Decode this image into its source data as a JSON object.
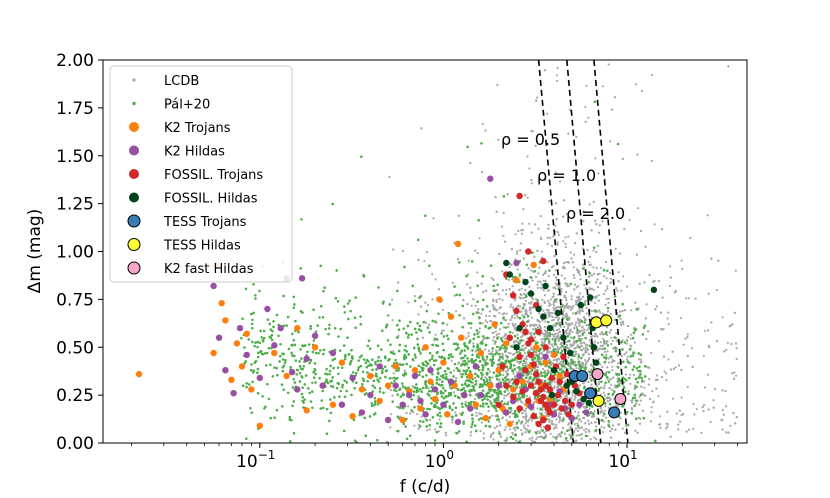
{
  "chart_data": {
    "type": "scatter",
    "x_scale": "log",
    "xlim": [
      0.014,
      45
    ],
    "ylim": [
      0.0,
      2.0
    ],
    "xlabel": "f (c/d)",
    "ylabel": "Δm (mag)",
    "x_ticks": [
      {
        "value": 0.1,
        "base": "10",
        "exp": "−1"
      },
      {
        "value": 1,
        "base": "10",
        "exp": "0"
      },
      {
        "value": 10,
        "base": "10",
        "exp": "1"
      }
    ],
    "y_ticks": [
      "0.00",
      "0.25",
      "0.50",
      "0.75",
      "1.00",
      "1.25",
      "1.50",
      "1.75",
      "2.00"
    ],
    "legend": [
      {
        "key": "lcdb",
        "label": "LCDB"
      },
      {
        "key": "pal",
        "label": "Pál+20"
      },
      {
        "key": "k2_trojans",
        "label": "K2 Trojans"
      },
      {
        "key": "k2_hildas",
        "label": "K2 Hildas"
      },
      {
        "key": "fossil_trojans",
        "label": "FOSSIL. Trojans"
      },
      {
        "key": "fossil_hildas",
        "label": "FOSSIL. Hildas"
      },
      {
        "key": "tess_trojans",
        "label": "TESS Trojans"
      },
      {
        "key": "tess_hildas",
        "label": "TESS Hildas"
      },
      {
        "key": "k2_fast_hildas",
        "label": "K2 fast Hildas"
      }
    ],
    "legend_position": "upper-left",
    "density_lines": [
      {
        "label": "ρ = 0.5",
        "rho": 0.5,
        "x_at_top": 3.3,
        "x_at_bottom": 5.1
      },
      {
        "label": "ρ = 1.0",
        "rho": 1.0,
        "x_at_top": 4.7,
        "x_at_bottom": 7.2
      },
      {
        "label": "ρ = 2.0",
        "rho": 2.0,
        "x_at_top": 6.6,
        "x_at_bottom": 10.1
      }
    ],
    "background_clouds": {
      "lcdb": {
        "color": "#a9a9a9",
        "count": 3600,
        "note": "dense gray cloud peaking near f≈3–6 c/d, Δm 0.1–1.4, sparse outliers to 2.0"
      },
      "pal": {
        "color": "#4daf4a",
        "count": 5200,
        "note": "dense green cloud spanning f 0.03–15 c/d, Δm 0.05–1.0"
      }
    },
    "series": [
      {
        "key": "k2_trojans",
        "name": "K2 Trojans",
        "color": "#ff7f0e",
        "edge": "none",
        "points": [
          [
            0.022,
            0.36
          ],
          [
            0.056,
            0.47
          ],
          [
            0.058,
            0.93
          ],
          [
            0.062,
            0.73
          ],
          [
            0.065,
            0.64
          ],
          [
            0.07,
            0.33
          ],
          [
            0.075,
            0.52
          ],
          [
            0.08,
            0.4
          ],
          [
            0.085,
            0.57
          ],
          [
            0.09,
            0.28
          ],
          [
            0.1,
            0.09
          ],
          [
            0.12,
            0.47
          ],
          [
            0.14,
            0.35
          ],
          [
            0.16,
            0.6
          ],
          [
            0.18,
            0.17
          ],
          [
            0.2,
            0.5
          ],
          [
            0.22,
            0.3
          ],
          [
            0.25,
            0.2
          ],
          [
            0.28,
            0.42
          ],
          [
            0.32,
            0.14
          ],
          [
            0.36,
            0.28
          ],
          [
            0.4,
            0.35
          ],
          [
            0.45,
            0.22
          ],
          [
            0.5,
            0.3
          ],
          [
            0.55,
            0.4
          ],
          [
            0.6,
            0.12
          ],
          [
            0.65,
            0.27
          ],
          [
            0.7,
            0.38
          ],
          [
            0.75,
            0.18
          ],
          [
            0.8,
            0.5
          ],
          [
            0.85,
            0.32
          ],
          [
            0.9,
            0.23
          ],
          [
            0.95,
            0.75
          ],
          [
            1.0,
            0.42
          ],
          [
            1.05,
            0.15
          ],
          [
            1.1,
            0.66
          ],
          [
            1.15,
            0.3
          ],
          [
            1.2,
            1.04
          ],
          [
            1.25,
            0.55
          ],
          [
            1.3,
            0.25
          ],
          [
            1.4,
            0.35
          ],
          [
            1.5,
            0.2
          ],
          [
            1.6,
            0.47
          ],
          [
            1.7,
            0.13
          ],
          [
            1.8,
            0.3
          ],
          [
            1.9,
            0.62
          ],
          [
            2.0,
            0.38
          ],
          [
            2.1,
            0.18
          ],
          [
            2.2,
            0.52
          ],
          [
            2.3,
            0.1
          ],
          [
            2.4,
            0.28
          ],
          [
            2.5,
            0.85
          ],
          [
            2.6,
            0.45
          ],
          [
            2.7,
            0.32
          ],
          [
            2.8,
            0.58
          ],
          [
            2.9,
            0.2
          ],
          [
            3.0,
            0.4
          ],
          [
            3.2,
            0.5
          ],
          [
            3.3,
            0.22
          ],
          [
            3.4,
            0.3
          ],
          [
            3.5,
            0.13
          ],
          [
            3.6,
            0.42
          ],
          [
            3.8,
            0.22
          ],
          [
            4.0,
            0.46
          ],
          [
            4.3,
            0.35
          ],
          [
            4.5,
            0.28
          ],
          [
            3.1,
            0.93
          ]
        ]
      },
      {
        "key": "k2_hildas",
        "name": "K2 Hildas",
        "color": "#984ea3",
        "edge": "none",
        "points": [
          [
            0.056,
            0.82
          ],
          [
            0.06,
            0.55
          ],
          [
            0.065,
            0.38
          ],
          [
            0.072,
            0.26
          ],
          [
            0.078,
            0.6
          ],
          [
            0.085,
            0.46
          ],
          [
            0.1,
            0.34
          ],
          [
            0.11,
            0.7
          ],
          [
            0.12,
            0.51
          ],
          [
            0.13,
            0.6
          ],
          [
            0.14,
            0.86
          ],
          [
            0.15,
            0.37
          ],
          [
            0.16,
            0.28
          ],
          [
            0.17,
            0.86
          ],
          [
            0.18,
            0.44
          ],
          [
            0.2,
            0.56
          ],
          [
            0.22,
            0.3
          ],
          [
            0.25,
            0.47
          ],
          [
            0.28,
            0.2
          ],
          [
            0.32,
            0.34
          ],
          [
            0.36,
            0.16
          ],
          [
            0.4,
            0.25
          ],
          [
            0.45,
            0.4
          ],
          [
            0.5,
            0.12
          ],
          [
            0.55,
            0.3
          ],
          [
            0.6,
            0.2
          ],
          [
            0.65,
            0.25
          ],
          [
            0.7,
            0.35
          ],
          [
            0.75,
            0.22
          ],
          [
            0.8,
            0.15
          ],
          [
            0.85,
            0.38
          ],
          [
            0.9,
            0.28
          ],
          [
            1.0,
            0.2
          ],
          [
            1.1,
            0.32
          ],
          [
            1.2,
            0.11
          ],
          [
            1.3,
            0.25
          ],
          [
            1.4,
            0.18
          ],
          [
            1.5,
            0.4
          ],
          [
            1.6,
            0.25
          ],
          [
            1.8,
            1.38
          ],
          [
            2.0,
            0.3
          ],
          [
            2.2,
            0.16
          ],
          [
            2.4,
            0.22
          ],
          [
            2.6,
            0.35
          ],
          [
            2.8,
            0.28
          ],
          [
            3.0,
            0.19
          ],
          [
            3.2,
            0.26
          ],
          [
            3.5,
            0.12
          ],
          [
            3.8,
            0.2
          ],
          [
            4.0,
            0.15
          ],
          [
            4.3,
            0.27
          ],
          [
            4.6,
            0.18
          ],
          [
            5.0,
            0.13
          ],
          [
            5.5,
            0.2
          ],
          [
            6.0,
            0.16
          ],
          [
            2.5,
            0.94
          ],
          [
            3.6,
            0.45
          ]
        ]
      },
      {
        "key": "fossil_trojans",
        "name": "FOSSIL. Trojans",
        "color": "#d62728",
        "edge": "none",
        "points": [
          [
            2.6,
            1.29
          ],
          [
            2.2,
            0.88
          ],
          [
            2.4,
            0.77
          ],
          [
            2.5,
            0.69
          ],
          [
            2.7,
            0.62
          ],
          [
            2.8,
            0.58
          ],
          [
            2.9,
            0.52
          ],
          [
            3.0,
            0.46
          ],
          [
            3.1,
            0.41
          ],
          [
            3.2,
            0.36
          ],
          [
            3.3,
            0.32
          ],
          [
            3.4,
            0.28
          ],
          [
            3.5,
            0.24
          ],
          [
            3.6,
            0.2
          ],
          [
            3.7,
            0.18
          ],
          [
            3.8,
            0.16
          ],
          [
            2.3,
            0.55
          ],
          [
            2.6,
            0.45
          ],
          [
            2.8,
            0.38
          ],
          [
            3.0,
            0.3
          ],
          [
            3.2,
            0.26
          ],
          [
            3.4,
            0.22
          ],
          [
            3.6,
            0.3
          ],
          [
            3.8,
            0.28
          ],
          [
            4.0,
            0.2
          ],
          [
            4.2,
            0.25
          ],
          [
            4.4,
            0.18
          ],
          [
            4.6,
            0.22
          ],
          [
            4.8,
            0.15
          ],
          [
            5.0,
            0.2
          ],
          [
            2.9,
            0.22
          ],
          [
            3.1,
            0.14
          ],
          [
            3.3,
            0.1
          ],
          [
            3.5,
            0.12
          ],
          [
            3.7,
            0.08
          ],
          [
            2.1,
            0.4
          ],
          [
            2.5,
            0.32
          ],
          [
            2.7,
            0.27
          ],
          [
            3.9,
            0.34
          ],
          [
            4.1,
            0.4
          ],
          [
            4.3,
            0.32
          ],
          [
            4.5,
            0.45
          ],
          [
            3.0,
            0.54
          ],
          [
            3.3,
            0.58
          ],
          [
            3.6,
            0.5
          ],
          [
            2.2,
            0.3
          ],
          [
            2.4,
            0.24
          ],
          [
            4.7,
            0.36
          ],
          [
            5.2,
            0.3
          ],
          [
            5.5,
            0.26
          ],
          [
            2.0,
            0.2
          ],
          [
            2.6,
            0.18
          ],
          [
            3.5,
            0.95
          ],
          [
            3.2,
            0.72
          ],
          [
            2.9,
            1.0
          ]
        ]
      },
      {
        "key": "fossil_hildas",
        "name": "FOSSIL. Hildas",
        "color": "#00441b",
        "edge": "none",
        "points": [
          [
            2.2,
            0.94
          ],
          [
            2.3,
            0.88
          ],
          [
            2.8,
            0.84
          ],
          [
            3.0,
            0.78
          ],
          [
            3.3,
            0.7
          ],
          [
            2.6,
            0.6
          ],
          [
            3.5,
            0.66
          ],
          [
            3.8,
            0.6
          ],
          [
            4.2,
            0.68
          ],
          [
            4.5,
            0.55
          ],
          [
            4.9,
            0.47
          ],
          [
            5.6,
            0.72
          ],
          [
            6.3,
            0.76
          ],
          [
            6.5,
            0.6
          ],
          [
            6.6,
            0.5
          ],
          [
            6.8,
            0.42
          ],
          [
            7.0,
            0.36
          ],
          [
            5.0,
            0.32
          ],
          [
            5.3,
            0.27
          ],
          [
            5.8,
            0.23
          ],
          [
            6.2,
            0.21
          ],
          [
            14.0,
            0.8
          ],
          [
            4.0,
            0.38
          ],
          [
            2.5,
            0.5
          ],
          [
            3.6,
            0.82
          ],
          [
            4.7,
            0.3
          ],
          [
            3.9,
            0.25
          ]
        ]
      },
      {
        "key": "tess_trojans",
        "name": "TESS Trojans",
        "color": "#377eb8",
        "edge": "#000000",
        "points": [
          [
            5.2,
            0.35
          ],
          [
            5.7,
            0.35
          ],
          [
            6.3,
            0.26
          ],
          [
            8.5,
            0.16
          ]
        ]
      },
      {
        "key": "tess_hildas",
        "name": "TESS Hildas",
        "color": "#ffff33",
        "edge": "#000000",
        "points": [
          [
            6.8,
            0.63
          ],
          [
            7.7,
            0.64
          ],
          [
            7.0,
            0.22
          ]
        ]
      },
      {
        "key": "k2_fast_hildas",
        "name": "K2 fast Hildas",
        "color": "#f4a7c7",
        "edge": "#000000",
        "points": [
          [
            6.9,
            0.36
          ],
          [
            9.2,
            0.23
          ]
        ]
      }
    ]
  }
}
